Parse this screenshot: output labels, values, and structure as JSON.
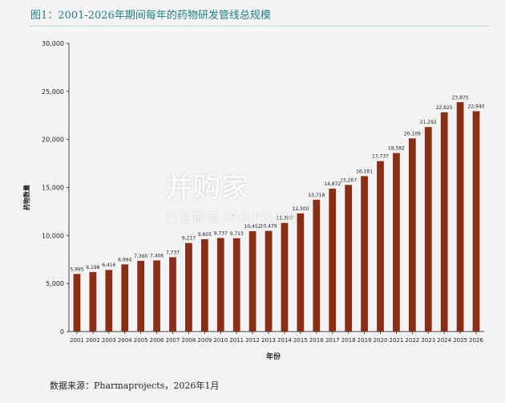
{
  "figure": {
    "title": "图1：2001-2026年期间每年的药物研发管线总规模",
    "source": "数据来源：Pharmaprojects，2026年1月"
  },
  "watermark": {
    "main": "并购家",
    "sub": "行业报告 IPOIPO.CN"
  },
  "colors": {
    "bar": "#8b2e16",
    "title": "#1f7f85"
  },
  "chart_data": {
    "type": "bar",
    "categories": [
      "2001",
      "2002",
      "2003",
      "2004",
      "2005",
      "2006",
      "2007",
      "2008",
      "2009",
      "2010",
      "2011",
      "2012",
      "2013",
      "2014",
      "2015",
      "2016",
      "2017",
      "2018",
      "2019",
      "2020",
      "2021",
      "2022",
      "2023",
      "2024",
      "2025",
      "2026"
    ],
    "values": [
      5995,
      6198,
      6416,
      6994,
      7360,
      7406,
      7737,
      9217,
      9605,
      9737,
      9713,
      10452,
      10479,
      11307,
      12300,
      13718,
      14872,
      15267,
      16181,
      17737,
      18582,
      20109,
      21292,
      22825,
      23875,
      22940
    ],
    "data_labels": [
      "5,995",
      "6,198",
      "6,416",
      "6,994",
      "7,360",
      "7,406",
      "7,737",
      "9,217",
      "9,605",
      "9,737",
      "9,713",
      "10,452",
      "10,479",
      "11,307",
      "12,300",
      "13,718",
      "14,872",
      "15,267",
      "16,181",
      "17,737",
      "18,582",
      "20,109",
      "21,292",
      "22,825",
      "23,875",
      "22,940"
    ],
    "yticks": [
      "0",
      "5,000",
      "10,000",
      "15,000",
      "20,000",
      "25,000",
      "30,000"
    ],
    "ylim": [
      0,
      30000
    ],
    "xlabel": "年份",
    "ylabel": "药物数量",
    "grid": false,
    "legend": "none"
  }
}
